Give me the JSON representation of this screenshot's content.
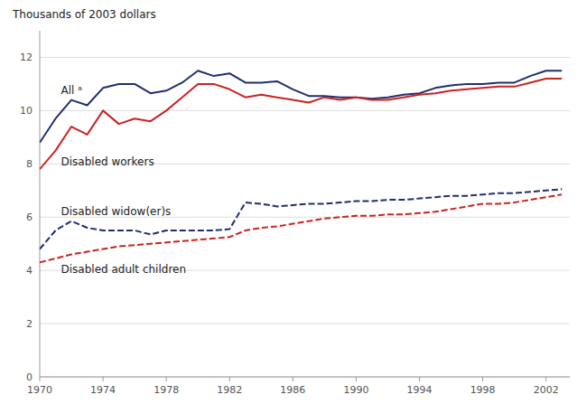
{
  "chart_data": {
    "type": "line",
    "y_label": "Thousands of 2003 dollars",
    "x": [
      1970,
      1971,
      1972,
      1973,
      1974,
      1975,
      1976,
      1977,
      1978,
      1979,
      1980,
      1981,
      1982,
      1983,
      1984,
      1985,
      1986,
      1987,
      1988,
      1989,
      1990,
      1991,
      1992,
      1993,
      1994,
      1995,
      1996,
      1997,
      1998,
      1999,
      2000,
      2001,
      2002,
      2003
    ],
    "series": [
      {
        "name": "All ᵃ",
        "color": "#1f2f6e",
        "line_style": "solid",
        "values": [
          8.8,
          9.7,
          10.4,
          10.2,
          10.85,
          11.0,
          11.0,
          10.65,
          10.75,
          11.05,
          11.5,
          11.3,
          11.4,
          11.05,
          11.05,
          11.1,
          10.8,
          10.55,
          10.55,
          10.5,
          10.5,
          10.45,
          10.5,
          10.6,
          10.65,
          10.85,
          10.95,
          11.0,
          11.0,
          11.05,
          11.05,
          11.3,
          11.5,
          11.5
        ]
      },
      {
        "name": "Disabled workers",
        "color": "#cc2222",
        "line_style": "solid",
        "values": [
          7.8,
          8.5,
          9.4,
          9.1,
          10.0,
          9.5,
          9.7,
          9.6,
          10.0,
          10.5,
          11.0,
          11.0,
          10.8,
          10.5,
          10.6,
          10.5,
          10.4,
          10.3,
          10.5,
          10.4,
          10.5,
          10.4,
          10.4,
          10.5,
          10.6,
          10.65,
          10.75,
          10.8,
          10.85,
          10.9,
          10.9,
          11.05,
          11.2,
          11.2
        ]
      },
      {
        "name": "Disabled widow(er)s",
        "color": "#1f2f6e",
        "line_style": "dashed",
        "values": [
          4.8,
          5.5,
          5.85,
          5.6,
          5.5,
          5.5,
          5.5,
          5.35,
          5.5,
          5.5,
          5.5,
          5.5,
          5.55,
          6.55,
          6.5,
          6.4,
          6.45,
          6.5,
          6.5,
          6.55,
          6.6,
          6.6,
          6.65,
          6.65,
          6.7,
          6.75,
          6.8,
          6.8,
          6.85,
          6.9,
          6.9,
          6.95,
          7.0,
          7.05
        ]
      },
      {
        "name": "Disabled adult children",
        "color": "#cc2222",
        "line_style": "dashed",
        "values": [
          4.3,
          4.45,
          4.6,
          4.7,
          4.8,
          4.9,
          4.95,
          5.0,
          5.05,
          5.1,
          5.15,
          5.2,
          5.25,
          5.5,
          5.6,
          5.65,
          5.75,
          5.85,
          5.95,
          6.0,
          6.05,
          6.05,
          6.1,
          6.1,
          6.15,
          6.2,
          6.3,
          6.4,
          6.5,
          6.5,
          6.55,
          6.65,
          6.75,
          6.85
        ]
      }
    ],
    "xlim": [
      1970,
      2003.5
    ],
    "xticks": [
      1970,
      1974,
      1978,
      1982,
      1986,
      1990,
      1994,
      1998,
      2002
    ],
    "ylim": [
      0,
      13
    ],
    "yticks": [
      0,
      2,
      4,
      6,
      8,
      10,
      12
    ],
    "grid": true
  }
}
